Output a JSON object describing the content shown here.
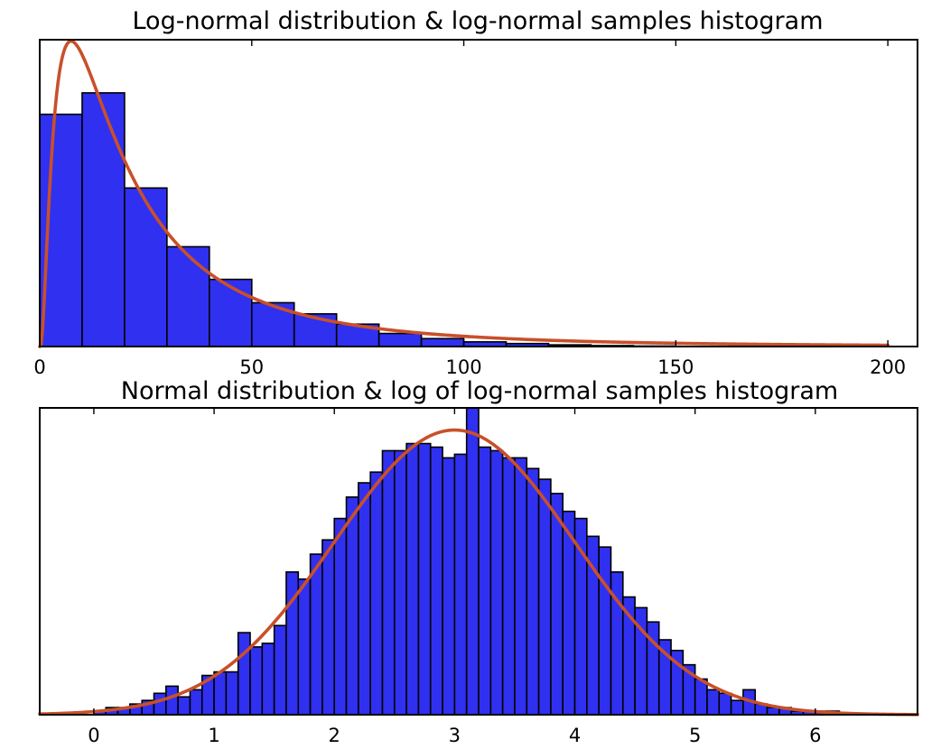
{
  "colors": {
    "bar_fill": "#3030f0",
    "bar_edge": "#000000",
    "curve": "#c8502a",
    "frame": "#000000",
    "background": "#ffffff"
  },
  "chart_data": [
    {
      "type": "bar",
      "title": "Log-normal distribution & log-normal samples histogram",
      "xlabel": "",
      "ylabel": "",
      "xlim": [
        0,
        207
      ],
      "ylim": [
        0,
        0.0329
      ],
      "xticks": [
        0,
        50,
        100,
        150,
        200
      ],
      "xtick_labels": [
        "0",
        "50",
        "100",
        "150",
        "200"
      ],
      "bin_edges": [
        0,
        10,
        20,
        30,
        40,
        50,
        60,
        70,
        80,
        90,
        100,
        110,
        120,
        130,
        140,
        150,
        160
      ],
      "values": [
        0.0249,
        0.0272,
        0.017,
        0.0107,
        0.0072,
        0.0047,
        0.0035,
        0.0024,
        0.0014,
        0.00085,
        0.0005,
        0.00032,
        0.00018,
        0.0001,
        5e-05,
        2e-05
      ],
      "curve": {
        "name": "",
        "kind": "lognormal_pdf",
        "mu": 3.0,
        "sigma": 1.0,
        "x_range": [
          0,
          200
        ]
      },
      "grid": false
    },
    {
      "type": "bar",
      "title": "Normal distribution & log of log-normal samples histogram",
      "xlabel": "",
      "ylabel": "",
      "xlim": [
        -0.45,
        6.85
      ],
      "ylim": [
        0,
        0.43
      ],
      "xticks": [
        0,
        1,
        2,
        3,
        4,
        5,
        6
      ],
      "xtick_labels": [
        "0",
        "1",
        "2",
        "3",
        "4",
        "5",
        "6"
      ],
      "bin_start": 0.0,
      "bin_width": 0.1,
      "values": [
        0.005,
        0.01,
        0.01,
        0.015,
        0.02,
        0.03,
        0.04,
        0.025,
        0.035,
        0.055,
        0.06,
        0.06,
        0.115,
        0.095,
        0.1,
        0.125,
        0.2,
        0.19,
        0.225,
        0.245,
        0.275,
        0.305,
        0.325,
        0.34,
        0.37,
        0.37,
        0.38,
        0.38,
        0.375,
        0.36,
        0.365,
        0.43,
        0.375,
        0.37,
        0.36,
        0.36,
        0.345,
        0.33,
        0.31,
        0.285,
        0.275,
        0.25,
        0.235,
        0.2,
        0.165,
        0.15,
        0.13,
        0.105,
        0.09,
        0.07,
        0.05,
        0.035,
        0.03,
        0.02,
        0.035,
        0.015,
        0.01,
        0.01,
        0.005,
        0.005,
        0.005,
        0.005
      ],
      "curve": {
        "name": "",
        "kind": "normal_pdf",
        "mu": 3.0,
        "sigma": 1.0,
        "x_range": [
          -0.45,
          6.85
        ]
      },
      "grid": false
    }
  ]
}
